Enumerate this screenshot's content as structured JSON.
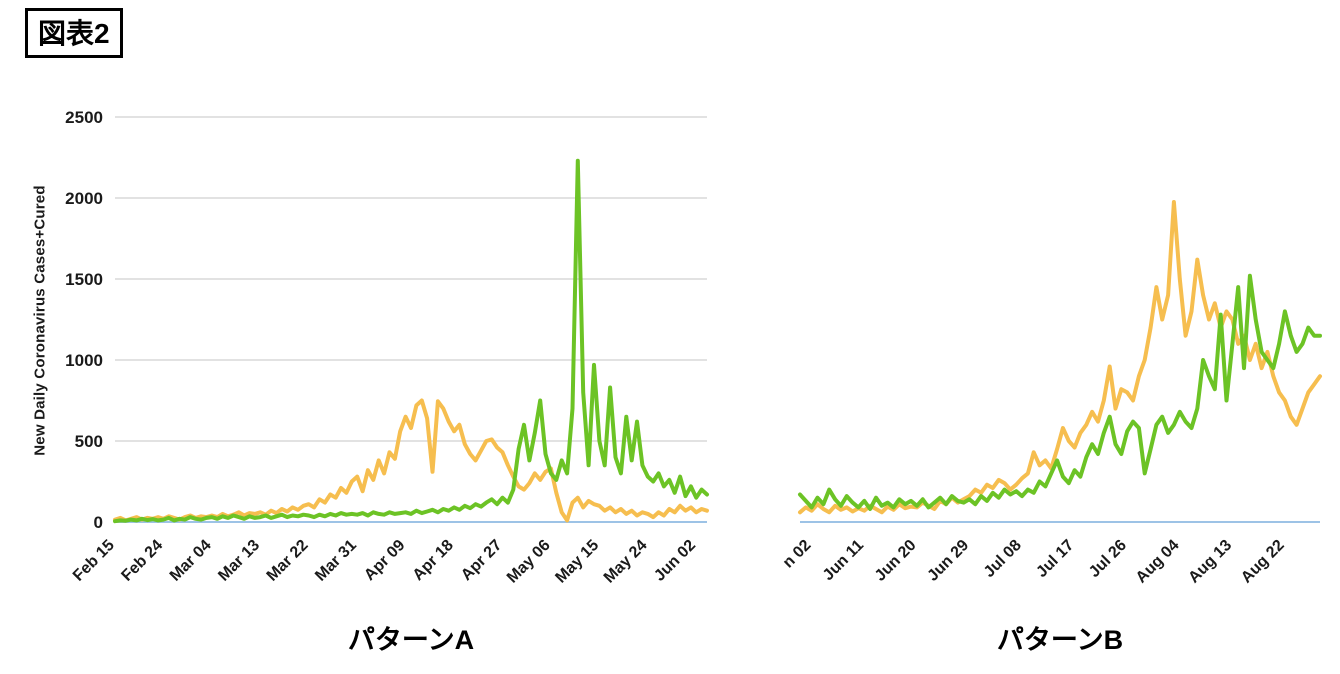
{
  "figure_label": "図表2",
  "ylabel": "New Daily Coronavirus Cases+Cured",
  "colors": {
    "orange_series": "#F6BE4F",
    "green_series": "#6CC325",
    "gridline": "#d9d9d9",
    "baseline": "#9DC3E6",
    "tick_text": "#1a1a1a"
  },
  "chart_data": [
    {
      "type": "line",
      "title": "パターンA",
      "ylabel": "New Daily Coronavirus Cases+Cured",
      "ylim": [
        0,
        2500
      ],
      "yticks": [
        0,
        500,
        1000,
        1500,
        2000,
        2500
      ],
      "show_y_axis": true,
      "show_grid": true,
      "xtick_labels": [
        "Feb 15",
        "Feb 24",
        "Mar 04",
        "Mar 13",
        "Mar 22",
        "Mar 31",
        "Apr 09",
        "Apr 18",
        "Apr 27",
        "May 06",
        "May 15",
        "May 24",
        "Jun 02"
      ],
      "xtick_indices": [
        0,
        9,
        18,
        27,
        36,
        45,
        54,
        63,
        72,
        81,
        90,
        99,
        108
      ],
      "n_points": 111,
      "series": [
        {
          "name": "orange",
          "color_key": "orange_series",
          "values": [
            15,
            25,
            10,
            20,
            30,
            15,
            25,
            20,
            30,
            20,
            35,
            25,
            15,
            30,
            40,
            25,
            35,
            30,
            40,
            30,
            50,
            35,
            45,
            60,
            40,
            55,
            50,
            60,
            45,
            70,
            55,
            80,
            65,
            90,
            75,
            100,
            110,
            90,
            140,
            120,
            170,
            150,
            210,
            180,
            250,
            280,
            190,
            320,
            260,
            380,
            300,
            430,
            390,
            560,
            650,
            580,
            720,
            750,
            640,
            310,
            745,
            700,
            620,
            560,
            600,
            480,
            420,
            380,
            440,
            500,
            510,
            460,
            430,
            350,
            280,
            220,
            200,
            240,
            300,
            260,
            310,
            330,
            180,
            60,
            10,
            120,
            150,
            90,
            130,
            110,
            100,
            70,
            90,
            60,
            80,
            50,
            70,
            40,
            60,
            50,
            30,
            60,
            40,
            80,
            60,
            100,
            70,
            90,
            60,
            80,
            70
          ]
        },
        {
          "name": "green",
          "color_key": "green_series",
          "values": [
            5,
            10,
            8,
            15,
            10,
            20,
            12,
            18,
            10,
            15,
            25,
            10,
            20,
            15,
            30,
            20,
            15,
            25,
            30,
            20,
            35,
            25,
            40,
            30,
            20,
            35,
            25,
            30,
            40,
            25,
            35,
            45,
            30,
            40,
            35,
            45,
            40,
            30,
            45,
            35,
            50,
            40,
            55,
            45,
            50,
            45,
            55,
            40,
            60,
            50,
            45,
            60,
            50,
            55,
            60,
            50,
            70,
            55,
            65,
            75,
            60,
            80,
            70,
            90,
            75,
            100,
            85,
            110,
            95,
            120,
            140,
            110,
            150,
            120,
            200,
            450,
            600,
            380,
            550,
            750,
            420,
            300,
            260,
            380,
            300,
            700,
            2230,
            800,
            350,
            970,
            500,
            350,
            830,
            400,
            300,
            650,
            380,
            620,
            350,
            280,
            250,
            300,
            220,
            260,
            180,
            280,
            160,
            220,
            150,
            200,
            170
          ]
        }
      ]
    },
    {
      "type": "line",
      "title": "パターンB",
      "ylim": [
        0,
        2500
      ],
      "yticks": [
        0,
        500,
        1000,
        1500,
        2000,
        2500
      ],
      "show_y_axis": false,
      "show_grid": false,
      "xtick_labels": [
        "n 02",
        "Jun 11",
        "Jun 20",
        "Jun 29",
        "Jul 08",
        "Jul 17",
        "Jul 26",
        "Aug 04",
        "Aug 13",
        "Aug 22"
      ],
      "xtick_indices": [
        2,
        11,
        20,
        29,
        38,
        47,
        56,
        65,
        74,
        83
      ],
      "n_points": 90,
      "series": [
        {
          "name": "orange",
          "color_key": "orange_series",
          "values": [
            60,
            90,
            70,
            110,
            80,
            60,
            100,
            75,
            90,
            65,
            85,
            70,
            100,
            80,
            60,
            95,
            75,
            110,
            85,
            95,
            90,
            120,
            100,
            80,
            130,
            110,
            150,
            120,
            140,
            160,
            200,
            180,
            230,
            210,
            260,
            240,
            200,
            230,
            270,
            300,
            430,
            350,
            380,
            330,
            450,
            580,
            500,
            460,
            550,
            600,
            680,
            620,
            750,
            960,
            700,
            820,
            800,
            750,
            900,
            1000,
            1200,
            1450,
            1250,
            1400,
            1975,
            1500,
            1150,
            1300,
            1620,
            1400,
            1250,
            1350,
            1200,
            1300,
            1250,
            1100,
            1150,
            1000,
            1100,
            950,
            1050,
            900,
            800,
            750,
            650,
            600,
            700,
            800,
            850,
            900
          ]
        },
        {
          "name": "green",
          "color_key": "green_series",
          "values": [
            170,
            130,
            90,
            150,
            110,
            200,
            140,
            100,
            160,
            120,
            90,
            130,
            80,
            150,
            100,
            120,
            90,
            140,
            110,
            130,
            100,
            140,
            90,
            120,
            150,
            110,
            160,
            130,
            120,
            140,
            110,
            160,
            130,
            180,
            150,
            200,
            170,
            190,
            160,
            200,
            180,
            250,
            220,
            300,
            380,
            280,
            240,
            320,
            280,
            400,
            480,
            420,
            550,
            650,
            480,
            420,
            560,
            620,
            580,
            300,
            450,
            600,
            650,
            550,
            600,
            680,
            620,
            580,
            700,
            1000,
            900,
            820,
            1280,
            750,
            1100,
            1450,
            950,
            1520,
            1250,
            1050,
            1000,
            950,
            1100,
            1300,
            1150,
            1050,
            1100,
            1200,
            1150,
            1150
          ]
        }
      ]
    }
  ]
}
